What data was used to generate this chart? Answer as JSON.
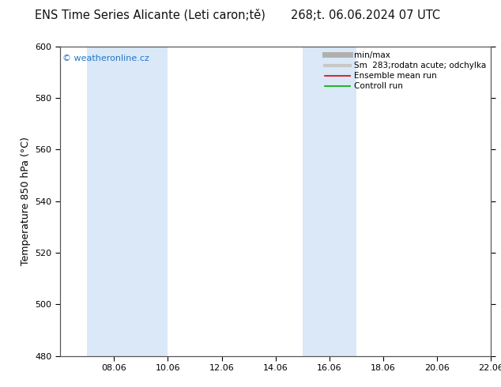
{
  "title_left": "ENS Time Series Alicante (Leti caron;tě)",
  "title_right": "268;t. 06.06.2024 07 UTC",
  "ylabel": "Temperature 850 hPa (°C)",
  "ylim": [
    480,
    600
  ],
  "yticks": [
    480,
    500,
    520,
    540,
    560,
    580,
    600
  ],
  "xtick_labels": [
    "08.06",
    "10.06",
    "12.06",
    "14.06",
    "16.06",
    "18.06",
    "20.06",
    "22.06"
  ],
  "xtick_days": [
    8,
    10,
    12,
    14,
    16,
    18,
    20,
    22
  ],
  "blue_bands": [
    {
      "start_day": 7,
      "end_day": 10
    },
    {
      "start_day": 15,
      "end_day": 17
    }
  ],
  "band_color": "#dae8f7",
  "background_color": "#ffffff",
  "watermark_text": "© weatheronline.cz",
  "watermark_color": "#2277cc",
  "legend_entries": [
    {
      "label": "min/max",
      "color": "#b0b0b0",
      "lw": 5
    },
    {
      "label": "Sm  283;rodatn acute; odchylka",
      "color": "#c8c8c8",
      "lw": 3
    },
    {
      "label": "Ensemble mean run",
      "color": "#dd0000",
      "lw": 1.2
    },
    {
      "label": "Controll run",
      "color": "#00aa00",
      "lw": 1.2
    }
  ],
  "title_fontsize": 10.5,
  "label_fontsize": 9,
  "tick_fontsize": 8,
  "legend_fontsize": 7.5,
  "watermark_fontsize": 8
}
